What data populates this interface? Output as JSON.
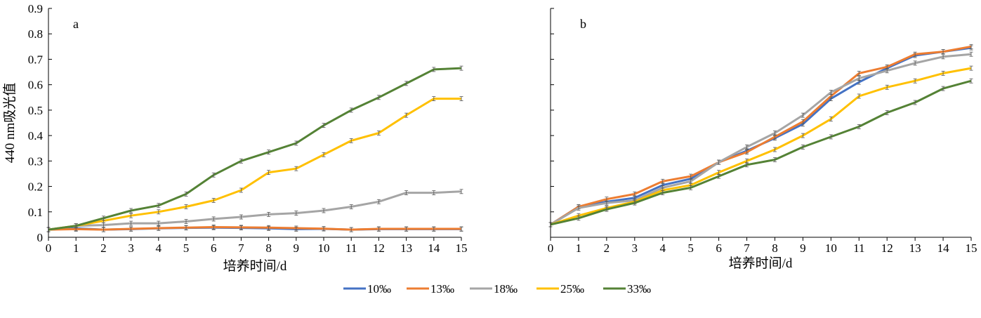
{
  "x_ticks": [
    "0",
    "1",
    "2",
    "3",
    "4",
    "5",
    "6",
    "7",
    "8",
    "9",
    "10",
    "11",
    "12",
    "13",
    "14",
    "15"
  ],
  "y_ticks": [
    "0",
    "0.1",
    "0.2",
    "0.3",
    "0.4",
    "0.5",
    "0.6",
    "0.7",
    "0.8",
    "0.9"
  ],
  "legend": [
    {
      "label": "10‰",
      "color": "#4472c4"
    },
    {
      "label": "13‰",
      "color": "#ed7d31"
    },
    {
      "label": "18‰",
      "color": "#a5a5a5"
    },
    {
      "label": "25‰",
      "color": "#ffc000"
    },
    {
      "label": "33‰",
      "color": "#548235"
    }
  ],
  "chart_data": [
    {
      "type": "line",
      "panel_label": "a",
      "xlabel": "培养时间/d",
      "ylabel": "440 nm吸光值",
      "xlim": [
        0,
        15
      ],
      "ylim": [
        0,
        0.9
      ],
      "grid": false,
      "x": [
        0,
        1,
        2,
        3,
        4,
        5,
        6,
        7,
        8,
        9,
        10,
        11,
        12,
        13,
        14,
        15
      ],
      "series": [
        {
          "name": "10‰",
          "color": "#4472c4",
          "values": [
            0.03,
            0.035,
            0.03,
            0.032,
            0.035,
            0.037,
            0.038,
            0.037,
            0.035,
            0.032,
            0.033,
            0.03,
            0.032,
            0.032,
            0.032,
            0.032
          ]
        },
        {
          "name": "13‰",
          "color": "#ed7d31",
          "values": [
            0.03,
            0.032,
            0.03,
            0.033,
            0.036,
            0.038,
            0.04,
            0.039,
            0.038,
            0.036,
            0.034,
            0.03,
            0.033,
            0.033,
            0.033,
            0.033
          ]
        },
        {
          "name": "18‰",
          "color": "#a5a5a5",
          "values": [
            0.03,
            0.045,
            0.048,
            0.055,
            0.055,
            0.062,
            0.072,
            0.08,
            0.09,
            0.095,
            0.105,
            0.12,
            0.14,
            0.175,
            0.175,
            0.18
          ]
        },
        {
          "name": "25‰",
          "color": "#ffc000",
          "values": [
            0.03,
            0.045,
            0.065,
            0.085,
            0.1,
            0.12,
            0.145,
            0.185,
            0.255,
            0.27,
            0.325,
            0.38,
            0.41,
            0.48,
            0.545,
            0.545
          ]
        },
        {
          "name": "33‰",
          "color": "#548235",
          "values": [
            0.03,
            0.045,
            0.075,
            0.105,
            0.125,
            0.17,
            0.245,
            0.3,
            0.335,
            0.37,
            0.44,
            0.5,
            0.55,
            0.605,
            0.66,
            0.665
          ]
        }
      ]
    },
    {
      "type": "line",
      "panel_label": "b",
      "xlabel": "培养时间/d",
      "ylabel": "",
      "xlim": [
        0,
        15
      ],
      "ylim": [
        0,
        0.9
      ],
      "grid": false,
      "x": [
        0,
        1,
        2,
        3,
        4,
        5,
        6,
        7,
        8,
        9,
        10,
        11,
        12,
        13,
        14,
        15
      ],
      "series": [
        {
          "name": "10‰",
          "color": "#4472c4",
          "values": [
            0.05,
            0.12,
            0.14,
            0.155,
            0.205,
            0.23,
            0.295,
            0.34,
            0.39,
            0.445,
            0.545,
            0.61,
            0.665,
            0.715,
            0.73,
            0.745
          ]
        },
        {
          "name": "13‰",
          "color": "#ed7d31",
          "values": [
            0.05,
            0.12,
            0.15,
            0.17,
            0.22,
            0.24,
            0.295,
            0.335,
            0.395,
            0.455,
            0.555,
            0.645,
            0.67,
            0.72,
            0.73,
            0.75
          ]
        },
        {
          "name": "18‰",
          "color": "#a5a5a5",
          "values": [
            0.05,
            0.115,
            0.135,
            0.145,
            0.195,
            0.22,
            0.295,
            0.355,
            0.41,
            0.48,
            0.57,
            0.625,
            0.655,
            0.685,
            0.71,
            0.72
          ]
        },
        {
          "name": "25‰",
          "color": "#ffc000",
          "values": [
            0.05,
            0.085,
            0.115,
            0.14,
            0.185,
            0.205,
            0.255,
            0.3,
            0.345,
            0.4,
            0.465,
            0.555,
            0.59,
            0.615,
            0.645,
            0.665
          ]
        },
        {
          "name": "33‰",
          "color": "#548235",
          "values": [
            0.05,
            0.075,
            0.11,
            0.135,
            0.175,
            0.195,
            0.24,
            0.285,
            0.305,
            0.355,
            0.395,
            0.435,
            0.49,
            0.53,
            0.585,
            0.615
          ]
        }
      ]
    }
  ]
}
